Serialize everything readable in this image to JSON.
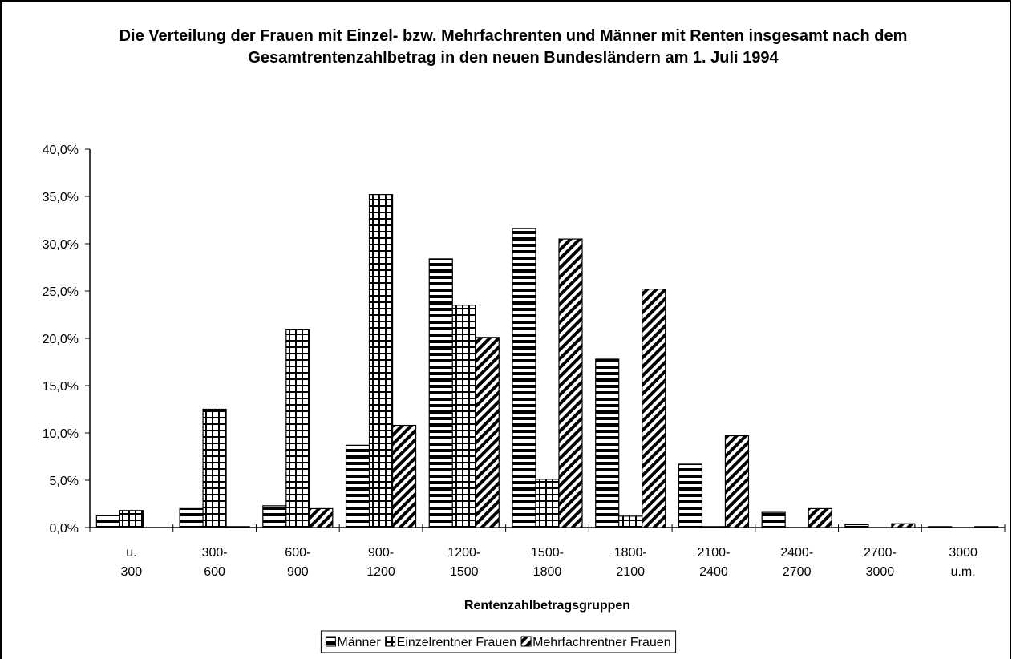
{
  "chart_data": {
    "type": "bar",
    "title": "Die Verteilung der Frauen mit Einzel- bzw. Mehrfachrenten und Männer mit Renten insgesamt nach dem Gesamtrentenzahlbetrag in den neuen Bundesländern am 1. Juli 1994",
    "x_label": "Rentenzahlbetragsgruppen",
    "categories": [
      [
        "u.",
        "300"
      ],
      [
        "300-",
        "600"
      ],
      [
        "600-",
        "900"
      ],
      [
        "900-",
        "1200"
      ],
      [
        "1200-",
        "1500"
      ],
      [
        "1500-",
        "1800"
      ],
      [
        "1800-",
        "2100"
      ],
      [
        "2100-",
        "2400"
      ],
      [
        "2400-",
        "2700"
      ],
      [
        "2700-",
        "3000"
      ],
      [
        "3000",
        "u.m."
      ]
    ],
    "series": [
      {
        "name": "Männer",
        "color": "#000",
        "pattern": "horizontal",
        "values": [
          1.3,
          2.0,
          2.3,
          8.7,
          28.4,
          31.6,
          17.8,
          6.7,
          1.6,
          0.3,
          0.1
        ]
      },
      {
        "name": "Einzelrentner Frauen",
        "color": "#000",
        "pattern": "grid",
        "values": [
          1.8,
          12.5,
          20.9,
          35.2,
          23.5,
          5.1,
          1.2,
          0.1,
          0.0,
          0.0,
          0.0
        ]
      },
      {
        "name": "Mehrfachrentner Frauen",
        "color": "#000",
        "pattern": "diagonal",
        "values": [
          0.0,
          0.1,
          2.0,
          10.8,
          20.1,
          30.5,
          25.2,
          9.7,
          2.0,
          0.4,
          0.1
        ]
      }
    ],
    "ylim": [
      0,
      40
    ],
    "yticks": [
      {
        "value": 0,
        "label": "0,0%"
      },
      {
        "value": 5,
        "label": "5,0%"
      },
      {
        "value": 10,
        "label": "10,0%"
      },
      {
        "value": 15,
        "label": "15,0%"
      },
      {
        "value": 20,
        "label": "20,0%"
      },
      {
        "value": 25,
        "label": "25,0%"
      },
      {
        "value": 30,
        "label": "30,0%"
      },
      {
        "value": 35,
        "label": "35,0%"
      },
      {
        "value": 40,
        "label": "40,0%"
      }
    ],
    "grid": false,
    "legend": "bottom"
  }
}
